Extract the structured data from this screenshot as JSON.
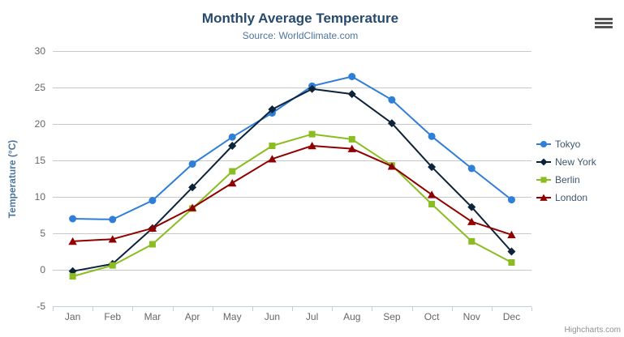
{
  "credits": "Highcharts.com",
  "colors": {
    "title": "#274b6d",
    "subtitle": "#4d759e",
    "axis_title": "#4d759e",
    "axis_labels": "#666666",
    "gridline": "#c8c8c8",
    "axis_line": "#c0d0e0",
    "legend_text": "#3e576f",
    "credits_text": "#909090",
    "menu_icon": "#555555"
  },
  "chart_data": {
    "type": "line",
    "title": "Monthly Average Temperature",
    "subtitle": "Source: WorldClimate.com",
    "categories": [
      "Jan",
      "Feb",
      "Mar",
      "Apr",
      "May",
      "Jun",
      "Jul",
      "Aug",
      "Sep",
      "Oct",
      "Nov",
      "Dec"
    ],
    "xlabel": "",
    "ylabel": "Temperature (°C)",
    "ylim": [
      -5,
      30
    ],
    "ytick_interval": 5,
    "grid": "horizontal",
    "legend_position": "right",
    "series": [
      {
        "name": "Tokyo",
        "color": "#2f7ed8",
        "marker": "circle",
        "values": [
          7.0,
          6.9,
          9.5,
          14.5,
          18.2,
          21.5,
          25.2,
          26.5,
          23.3,
          18.3,
          13.9,
          9.6
        ]
      },
      {
        "name": "New York",
        "color": "#0d233a",
        "marker": "diamond",
        "values": [
          -0.2,
          0.8,
          5.7,
          11.3,
          17.0,
          22.0,
          24.8,
          24.1,
          20.1,
          14.1,
          8.6,
          2.5
        ]
      },
      {
        "name": "Berlin",
        "color": "#8bbc21",
        "marker": "square",
        "values": [
          -0.9,
          0.6,
          3.5,
          8.4,
          13.5,
          17.0,
          18.6,
          17.9,
          14.3,
          9.0,
          3.9,
          1.0
        ]
      },
      {
        "name": "London",
        "color": "#910000",
        "marker": "triangle",
        "values": [
          3.9,
          4.2,
          5.7,
          8.5,
          11.9,
          15.2,
          17.0,
          16.6,
          14.2,
          10.3,
          6.6,
          4.8
        ]
      }
    ]
  }
}
